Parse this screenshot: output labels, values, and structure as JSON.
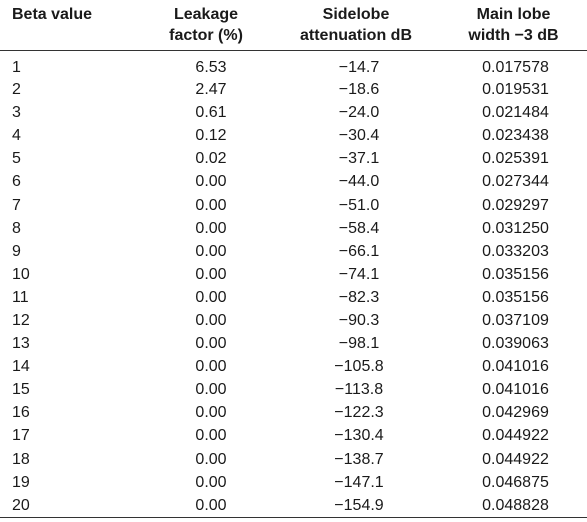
{
  "table": {
    "headers": [
      "Beta value",
      "Leakage factor (%)",
      "Sidelobe attenuation dB",
      "Main lobe width −3 dB"
    ],
    "header_lines": [
      [
        "Beta value",
        ""
      ],
      [
        "Leakage",
        "factor (%)"
      ],
      [
        "Sidelobe",
        "attenuation dB"
      ],
      [
        "Main lobe",
        "width −3 dB"
      ]
    ],
    "rows": [
      [
        "1",
        "6.53",
        "−14.7",
        "0.017578"
      ],
      [
        "2",
        "2.47",
        "−18.6",
        "0.019531"
      ],
      [
        "3",
        "0.61",
        "−24.0",
        "0.021484"
      ],
      [
        "4",
        "0.12",
        "−30.4",
        "0.023438"
      ],
      [
        "5",
        "0.02",
        "−37.1",
        "0.025391"
      ],
      [
        "6",
        "0.00",
        "−44.0",
        "0.027344"
      ],
      [
        "7",
        "0.00",
        "−51.0",
        "0.029297"
      ],
      [
        "8",
        "0.00",
        "−58.4",
        "0.031250"
      ],
      [
        "9",
        "0.00",
        "−66.1",
        "0.033203"
      ],
      [
        "10",
        "0.00",
        "−74.1",
        "0.035156"
      ],
      [
        "11",
        "0.00",
        "−82.3",
        "0.035156"
      ],
      [
        "12",
        "0.00",
        "−90.3",
        "0.037109"
      ],
      [
        "13",
        "0.00",
        "−98.1",
        "0.039063"
      ],
      [
        "14",
        "0.00",
        "−105.8",
        "0.041016"
      ],
      [
        "15",
        "0.00",
        "−113.8",
        "0.041016"
      ],
      [
        "16",
        "0.00",
        "−122.3",
        "0.042969"
      ],
      [
        "17",
        "0.00",
        "−130.4",
        "0.044922"
      ],
      [
        "18",
        "0.00",
        "−138.7",
        "0.044922"
      ],
      [
        "19",
        "0.00",
        "−147.1",
        "0.046875"
      ],
      [
        "20",
        "0.00",
        "−154.9",
        "0.048828"
      ]
    ]
  }
}
